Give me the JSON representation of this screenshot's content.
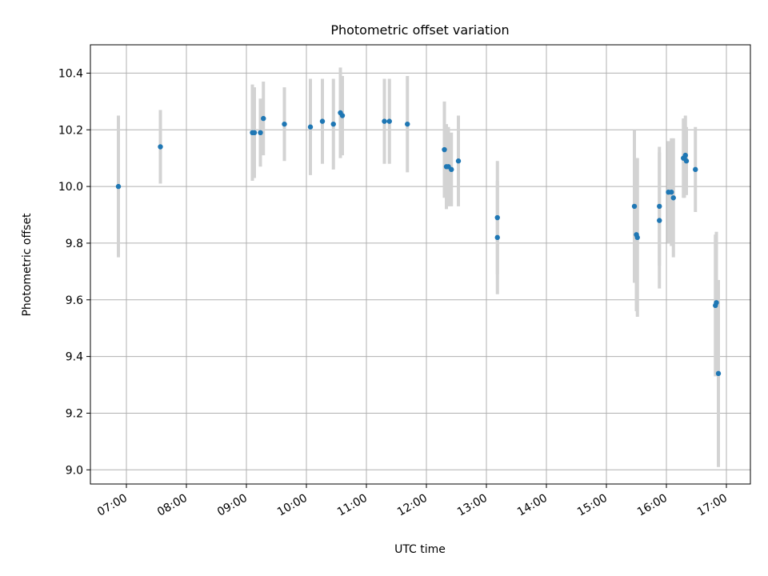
{
  "chart_data": {
    "type": "scatter",
    "title": "Photometric offset variation",
    "xlabel": "UTC time",
    "ylabel": "Photometric offset",
    "x_tick_labels": [
      "07:00",
      "08:00",
      "09:00",
      "10:00",
      "11:00",
      "12:00",
      "13:00",
      "14:00",
      "15:00",
      "16:00",
      "17:00"
    ],
    "y_tick_labels": [
      "9.0",
      "9.2",
      "9.4",
      "9.6",
      "9.8",
      "10.0",
      "10.2",
      "10.4"
    ],
    "xlim": [
      "06:24",
      "17:24"
    ],
    "ylim": [
      8.95,
      10.5
    ],
    "grid": true,
    "point_color": "#1f77b4",
    "errorbar_color": "#d3d3d3",
    "x_tick_rotation_deg": 30,
    "points": [
      {
        "x": "06:52",
        "y": 10.0,
        "err": 0.25
      },
      {
        "x": "07:34",
        "y": 10.14,
        "err": 0.13
      },
      {
        "x": "09:06",
        "y": 10.19,
        "err": 0.17
      },
      {
        "x": "09:08",
        "y": 10.19,
        "err": 0.16
      },
      {
        "x": "09:14",
        "y": 10.19,
        "err": 0.12
      },
      {
        "x": "09:17",
        "y": 10.24,
        "err": 0.13
      },
      {
        "x": "09:38",
        "y": 10.22,
        "err": 0.13
      },
      {
        "x": "10:04",
        "y": 10.21,
        "err": 0.17
      },
      {
        "x": "10:16",
        "y": 10.23,
        "err": 0.15
      },
      {
        "x": "10:27",
        "y": 10.22,
        "err": 0.16
      },
      {
        "x": "10:34",
        "y": 10.26,
        "err": 0.16
      },
      {
        "x": "10:36",
        "y": 10.25,
        "err": 0.14
      },
      {
        "x": "11:18",
        "y": 10.23,
        "err": 0.15
      },
      {
        "x": "11:23",
        "y": 10.23,
        "err": 0.15
      },
      {
        "x": "11:41",
        "y": 10.22,
        "err": 0.17
      },
      {
        "x": "12:18",
        "y": 10.13,
        "err": 0.17
      },
      {
        "x": "12:20",
        "y": 10.07,
        "err": 0.15
      },
      {
        "x": "12:22",
        "y": 10.07,
        "err": 0.14
      },
      {
        "x": "12:25",
        "y": 10.06,
        "err": 0.13
      },
      {
        "x": "12:32",
        "y": 10.09,
        "err": 0.16
      },
      {
        "x": "13:11",
        "y": 9.89,
        "err": 0.2
      },
      {
        "x": "13:11",
        "y": 9.82,
        "err": 0.2
      },
      {
        "x": "15:28",
        "y": 9.93,
        "err": 0.27
      },
      {
        "x": "15:30",
        "y": 9.83,
        "err": 0.27
      },
      {
        "x": "15:31",
        "y": 9.82,
        "err": 0.28
      },
      {
        "x": "15:53",
        "y": 9.93,
        "err": 0.21
      },
      {
        "x": "15:53",
        "y": 9.88,
        "err": 0.24
      },
      {
        "x": "16:02",
        "y": 9.98,
        "err": 0.18
      },
      {
        "x": "16:05",
        "y": 9.98,
        "err": 0.19
      },
      {
        "x": "16:07",
        "y": 9.96,
        "err": 0.21
      },
      {
        "x": "16:17",
        "y": 10.1,
        "err": 0.14
      },
      {
        "x": "16:18",
        "y": 10.1,
        "err": 0.14
      },
      {
        "x": "16:19",
        "y": 10.11,
        "err": 0.14
      },
      {
        "x": "16:20",
        "y": 10.09,
        "err": 0.12
      },
      {
        "x": "16:29",
        "y": 10.06,
        "err": 0.15
      },
      {
        "x": "16:49",
        "y": 9.58,
        "err": 0.25
      },
      {
        "x": "16:50",
        "y": 9.59,
        "err": 0.25
      },
      {
        "x": "16:52",
        "y": 9.34,
        "err": 0.33
      }
    ]
  }
}
